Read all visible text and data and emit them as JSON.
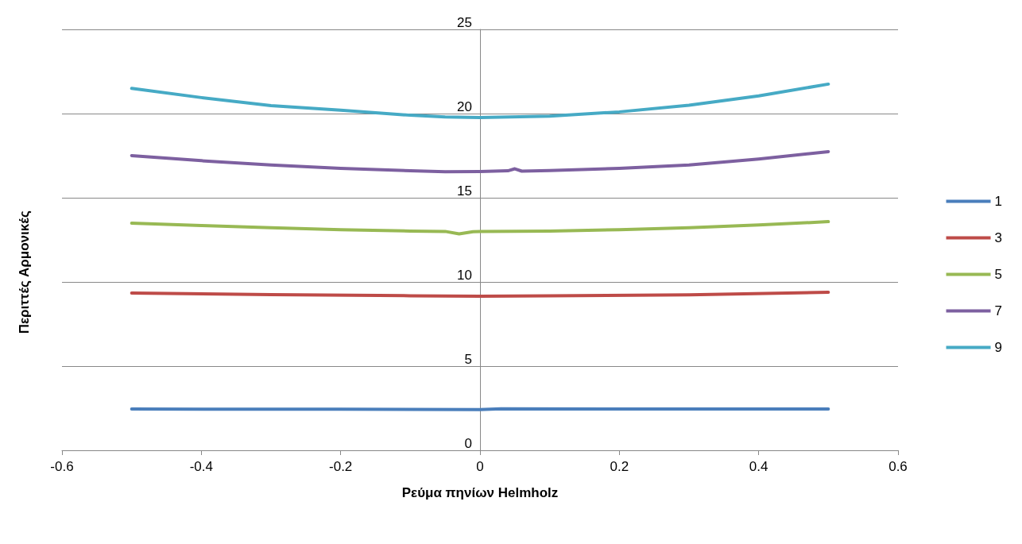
{
  "chart_data": {
    "type": "line",
    "xlabel": "Ρεύμα πηνίων Helmholz",
    "ylabel": "Περιττές Αρμονικές",
    "xlim": [
      -0.6,
      0.6
    ],
    "xticks": [
      -0.6,
      -0.4,
      -0.2,
      0,
      0.2,
      0.4,
      0.6
    ],
    "ylim": [
      0,
      25
    ],
    "yticks": [
      0,
      5,
      10,
      15,
      20,
      25
    ],
    "grid": "y",
    "legend": "right",
    "marker": "none",
    "line_style": "solid",
    "series": [
      {
        "name": "1",
        "color": "#4a7ebb",
        "x": [
          -0.5,
          -0.2,
          0,
          0.03,
          0.2,
          0.5
        ],
        "values": [
          2.45,
          2.44,
          2.42,
          2.47,
          2.45,
          2.45
        ]
      },
      {
        "name": "3",
        "color": "#be4b48",
        "x": [
          -0.5,
          -0.3,
          -0.1,
          0,
          0.1,
          0.3,
          0.5
        ],
        "values": [
          9.34,
          9.25,
          9.18,
          9.15,
          9.18,
          9.23,
          9.39
        ]
      },
      {
        "name": "5",
        "color": "#98b954",
        "x": [
          -0.5,
          -0.4,
          -0.3,
          -0.2,
          -0.1,
          -0.05,
          -0.03,
          -0.01,
          0,
          0.1,
          0.2,
          0.3,
          0.4,
          0.5
        ],
        "values": [
          13.49,
          13.35,
          13.22,
          13.1,
          13.02,
          13.0,
          12.85,
          12.98,
          12.99,
          13.02,
          13.1,
          13.22,
          13.38,
          13.58
        ]
      },
      {
        "name": "7",
        "color": "#7d60a0",
        "x": [
          -0.5,
          -0.4,
          -0.3,
          -0.2,
          -0.1,
          -0.05,
          0,
          0.04,
          0.05,
          0.06,
          0.1,
          0.2,
          0.3,
          0.4,
          0.5
        ],
        "values": [
          17.5,
          17.2,
          16.95,
          16.75,
          16.6,
          16.55,
          16.56,
          16.6,
          16.72,
          16.58,
          16.62,
          16.75,
          16.95,
          17.3,
          17.74
        ]
      },
      {
        "name": "9",
        "color": "#46aac5",
        "x": [
          -0.5,
          -0.4,
          -0.3,
          -0.2,
          -0.1,
          -0.05,
          0,
          0.1,
          0.2,
          0.3,
          0.4,
          0.5
        ],
        "values": [
          21.5,
          20.95,
          20.47,
          20.2,
          19.9,
          19.8,
          19.76,
          19.85,
          20.1,
          20.5,
          21.05,
          21.75
        ]
      }
    ]
  }
}
